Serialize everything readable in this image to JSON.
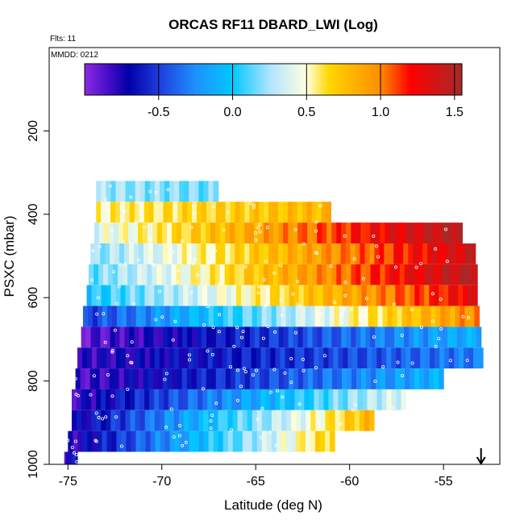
{
  "chart_data": {
    "type": "heatmap",
    "title": "ORCAS RF11 DBARD_LWI (Log)",
    "flights_label": "Flts: 11",
    "date_label": "MMDD: 0212",
    "xlabel": "Latitude (deg N)",
    "ylabel": "PSXC (mbar)",
    "xlim": [
      -76,
      -52
    ],
    "ylim": [
      1000,
      0
    ],
    "x_ticks": [
      "-75",
      "-70",
      "-65",
      "-60",
      "-55"
    ],
    "y_ticks": [
      "200",
      "400",
      "600",
      "800",
      "1000"
    ],
    "colorbar": {
      "range": [
        -1,
        1.55
      ],
      "tick_labels": [
        "-0.5",
        "0.0",
        "0.5",
        "1.0",
        "1.5"
      ],
      "stops": [
        {
          "v": -1.0,
          "color": "#8a2be2"
        },
        {
          "v": -0.85,
          "color": "#4b0fc8"
        },
        {
          "v": -0.7,
          "color": "#0000a8"
        },
        {
          "v": -0.5,
          "color": "#1e3cdc"
        },
        {
          "v": -0.25,
          "color": "#1e90ff"
        },
        {
          "v": 0.0,
          "color": "#00c8ff"
        },
        {
          "v": 0.25,
          "color": "#aee4ff"
        },
        {
          "v": 0.5,
          "color": "#ffffe0"
        },
        {
          "v": 0.65,
          "color": "#ffd700"
        },
        {
          "v": 1.0,
          "color": "#ff8c00"
        },
        {
          "v": 1.2,
          "color": "#ff0000"
        },
        {
          "v": 1.55,
          "color": "#a52a2a"
        }
      ]
    },
    "bands": [
      {
        "p_top": 320,
        "p_bot": 370,
        "x_start": -73.5,
        "x_end": -67.0,
        "v_start": 0.25,
        "v_end": 0.15
      },
      {
        "p_top": 370,
        "p_bot": 420,
        "x_start": -73.5,
        "x_end": -61.0,
        "v_start": 0.55,
        "v_end": 0.8
      },
      {
        "p_top": 420,
        "p_bot": 470,
        "x_start": -73.6,
        "x_end": -54.0,
        "v_start": 0.4,
        "v_end": 1.5
      },
      {
        "p_top": 470,
        "p_bot": 520,
        "x_start": -73.8,
        "x_end": -53.3,
        "v_start": 0.2,
        "v_end": 1.4
      },
      {
        "p_top": 520,
        "p_bot": 570,
        "x_start": -73.9,
        "x_end": -53.2,
        "v_start": 0.15,
        "v_end": 1.5
      },
      {
        "p_top": 570,
        "p_bot": 620,
        "x_start": -74.0,
        "x_end": -53.2,
        "v_start": 0.0,
        "v_end": 1.3
      },
      {
        "p_top": 620,
        "p_bot": 670,
        "x_start": -74.2,
        "x_end": -53.1,
        "v_start": -0.5,
        "v_end": 1.0
      },
      {
        "p_top": 670,
        "p_bot": 720,
        "x_start": -74.3,
        "x_end": -53.0,
        "v_start": -0.9,
        "v_end": -0.1
      },
      {
        "p_top": 720,
        "p_bot": 770,
        "x_start": -74.5,
        "x_end": -52.9,
        "v_start": -0.8,
        "v_end": -0.3
      },
      {
        "p_top": 770,
        "p_bot": 820,
        "x_start": -74.6,
        "x_end": -55.0,
        "v_start": -0.85,
        "v_end": -0.1
      },
      {
        "p_top": 820,
        "p_bot": 870,
        "x_start": -74.8,
        "x_end": -57.0,
        "v_start": -0.8,
        "v_end": 0.4
      },
      {
        "p_top": 870,
        "p_bot": 920,
        "x_start": -74.8,
        "x_end": -58.7,
        "v_start": -0.75,
        "v_end": 0.8
      },
      {
        "p_top": 920,
        "p_bot": 970,
        "x_start": -75.0,
        "x_end": -60.8,
        "v_start": -0.8,
        "v_end": 0.7
      },
      {
        "p_top": 970,
        "p_bot": 1000,
        "x_start": -75.2,
        "x_end": -74.5,
        "v_start": -0.8,
        "v_end": -0.6
      }
    ],
    "arrow_latitude": -53.0
  }
}
